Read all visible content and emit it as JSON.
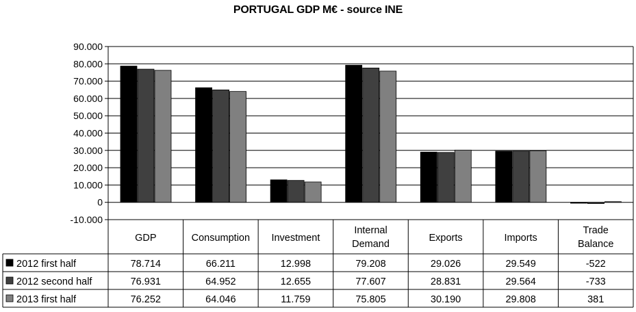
{
  "chart_data": {
    "type": "bar",
    "title": "PORTUGAL GDP M€ - source INE",
    "xlabel": "",
    "ylabel": "",
    "ylim": [
      -10000,
      90000
    ],
    "yticks": [
      -10000,
      0,
      10000,
      20000,
      30000,
      40000,
      50000,
      60000,
      70000,
      80000,
      90000
    ],
    "ytick_labels": [
      "-10.000",
      "0",
      "10.000",
      "20.000",
      "30.000",
      "40.000",
      "50.000",
      "60.000",
      "70.000",
      "80.000",
      "90.000"
    ],
    "grid": true,
    "categories": [
      [
        "GDP"
      ],
      [
        "Consumption"
      ],
      [
        "Investment"
      ],
      [
        "Internal",
        "Demand"
      ],
      [
        "Exports"
      ],
      [
        "Imports"
      ],
      [
        "Trade",
        "Balance"
      ]
    ],
    "series": [
      {
        "name": "2012 first half",
        "color": "#000000",
        "values": [
          78714,
          66211,
          12998,
          79208,
          29026,
          29549,
          -522
        ],
        "labels": [
          "78.714",
          "66.211",
          "12.998",
          "79.208",
          "29.026",
          "29.549",
          "-522"
        ]
      },
      {
        "name": "2012 second half",
        "color": "#404040",
        "values": [
          76931,
          64952,
          12655,
          77607,
          28831,
          29564,
          -733
        ],
        "labels": [
          "76.931",
          "64.952",
          "12.655",
          "77.607",
          "28.831",
          "29.564",
          "-733"
        ]
      },
      {
        "name": "2013 first half",
        "color": "#808080",
        "values": [
          76252,
          64046,
          11759,
          75805,
          30190,
          29808,
          381
        ],
        "labels": [
          "76.252",
          "64.046",
          "11.759",
          "75.805",
          "30.190",
          "29.808",
          "381"
        ]
      }
    ],
    "legend": "data-table"
  }
}
